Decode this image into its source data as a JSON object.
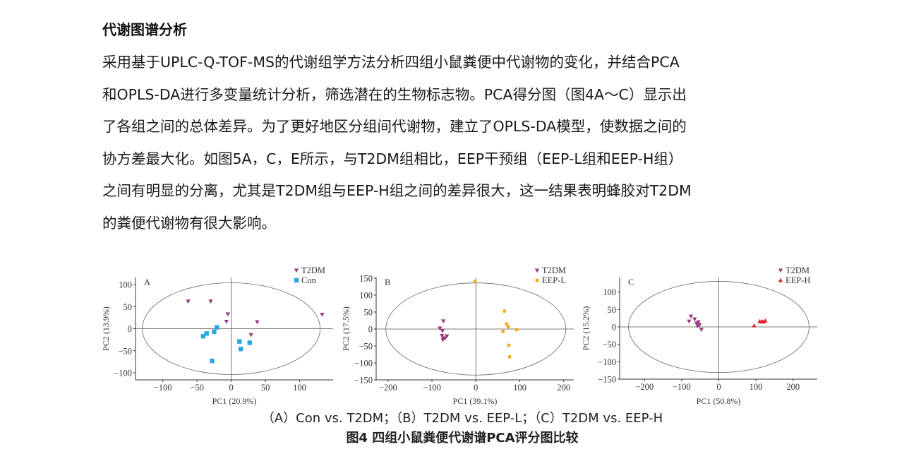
{
  "section_title": "代谢图谱分析",
  "paragraph_lines": [
    "采用基于UPLC-Q-TOF-MS的代谢组学方法分析四组小鼠粪便中代谢物的变化，并结合PCA",
    "和OPLS-DA进行多变量统计分析，筛选潜在的生物标志物。PCA得分图（图4A～C）显示出",
    "了各组之间的总体差异。为了更好地区分组间代谢物，建立了OPLS-DA模型，使数据之间的",
    "协方差最大化。如图5A，C，E所示，与T2DM组相比，EEP干预组（EEP-L组和EEP-H组）",
    "之间有明显的分离，尤其是T2DM组与EEP-H组之间的差异很大，这一结果表明蜂胶对T2DM",
    "的粪便代谢物有很大影响。"
  ],
  "figure": {
    "subcaption": "（A）Con vs. T2DM；（B）T2DM vs. EEP-L；（C）T2DM vs. EEP-H",
    "caption": "图4  四组小鼠粪便代谢谱PCA评分图比较"
  },
  "chart_data": [
    {
      "type": "scatter",
      "panel_label": "A",
      "xlabel": "PC1 (20.9%)",
      "ylabel": "PC2 (13.9%)",
      "xlim": [
        -140,
        149
      ],
      "ylim": [
        -116,
        116
      ],
      "xticks": [
        -100,
        -50,
        0,
        50,
        100
      ],
      "yticks": [
        100,
        50,
        0,
        -50,
        -100
      ],
      "ellipse": {
        "cx": 0,
        "cy": 0,
        "rx": 130,
        "ry": 104
      },
      "legend_position": "top-right",
      "series": [
        {
          "name": "T2DM",
          "marker": "triangle-down",
          "color": "#9b3a7e",
          "points": [
            [
              -63,
              62
            ],
            [
              -30,
              62
            ],
            [
              -5,
              33
            ],
            [
              -7,
              16
            ],
            [
              38,
              15
            ],
            [
              29,
              -14
            ],
            [
              133,
              32
            ]
          ]
        },
        {
          "name": "Con",
          "marker": "square",
          "color": "#2aa6e0",
          "points": [
            [
              -41,
              -17
            ],
            [
              -36,
              -11
            ],
            [
              -25,
              -7
            ],
            [
              -21,
              3
            ],
            [
              12,
              -29
            ],
            [
              14,
              -46
            ],
            [
              27,
              -32
            ],
            [
              -28,
              -73
            ]
          ]
        }
      ]
    },
    {
      "type": "scatter",
      "panel_label": "B",
      "xlabel": "PC1 (39.1%)",
      "ylabel": "PC2 (17.5%)",
      "xlim": [
        -227,
        223
      ],
      "ylim": [
        -150,
        152
      ],
      "xticks": [
        -200,
        -100,
        0,
        100,
        200
      ],
      "yticks": [
        150,
        100,
        50,
        0,
        -50,
        -100,
        -150
      ],
      "ellipse": {
        "cx": 0,
        "cy": 0,
        "rx": 205,
        "ry": 136
      },
      "legend_position": "top-right",
      "series": [
        {
          "name": "T2DM",
          "marker": "triangle-down",
          "color": "#9b3a7e",
          "points": [
            [
              -82,
              2
            ],
            [
              -74,
              23
            ],
            [
              -76,
              -6
            ],
            [
              -77,
              -20
            ],
            [
              -66,
              -21
            ],
            [
              -73,
              -28
            ],
            [
              -75,
              -32
            ],
            [
              -70,
              -27
            ]
          ]
        },
        {
          "name": "EEP-L",
          "marker": "circle",
          "color": "#f2ad24",
          "points": [
            [
              -2,
              140
            ],
            [
              65,
              53
            ],
            [
              70,
              15
            ],
            [
              74,
              7
            ],
            [
              93,
              -2
            ],
            [
              62,
              -7
            ],
            [
              75,
              -48
            ],
            [
              77,
              -82
            ]
          ]
        }
      ]
    },
    {
      "type": "scatter",
      "panel_label": "C",
      "xlabel": "PC1 (50.8%)",
      "ylabel": "PC2 (15.2%)",
      "xlim": [
        -267,
        265
      ],
      "ylim": [
        -150,
        142
      ],
      "xticks": [
        -200,
        -100,
        0,
        100,
        200
      ],
      "yticks": [
        100,
        50,
        0,
        -50,
        -100,
        -150
      ],
      "ellipse": {
        "cx": 0,
        "cy": 0,
        "rx": 243,
        "ry": 131
      },
      "legend_position": "top-right",
      "series": [
        {
          "name": "T2DM",
          "marker": "triangle-down",
          "color": "#9b3a7e",
          "points": [
            [
              -80,
              16
            ],
            [
              -75,
              30
            ],
            [
              -65,
              22
            ],
            [
              -60,
              10
            ],
            [
              -55,
              14
            ],
            [
              -57,
              2
            ],
            [
              -47,
              -8
            ],
            [
              -52,
              6
            ]
          ]
        },
        {
          "name": "EEP-H",
          "marker": "triangle-up",
          "color": "#e0202a",
          "points": [
            [
              95,
              4
            ],
            [
              110,
              16
            ],
            [
              116,
              16
            ],
            [
              119,
              15
            ],
            [
              125,
              18
            ]
          ]
        }
      ]
    }
  ]
}
